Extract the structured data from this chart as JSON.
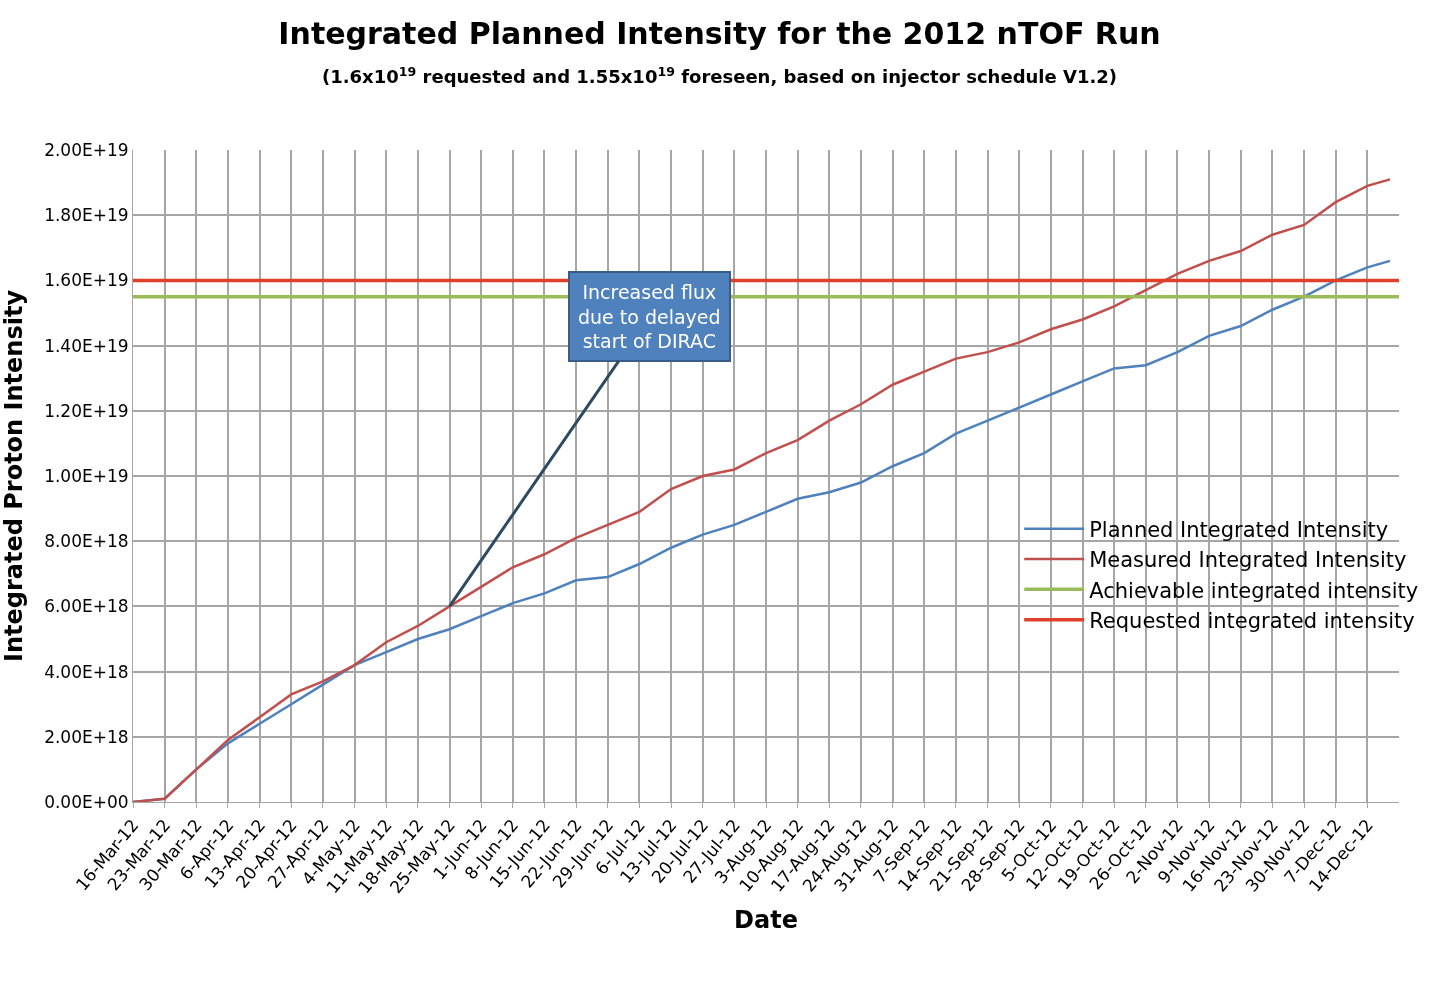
{
  "chart_data": {
    "type": "line",
    "title": "Integrated Planned Intensity for the 2012 nTOF Run",
    "subtitle": "(1.6x10$^{19}$ requested and 1.55x10$^{19}$ foreseen, based on injector schedule V1.2)",
    "xlabel": "Date",
    "ylabel": "Integrated Proton Intensity",
    "x": [
      "2012-03-16",
      "2012-03-23",
      "2012-03-30",
      "2012-04-06",
      "2012-04-13",
      "2012-04-20",
      "2012-04-27",
      "2012-05-04",
      "2012-05-11",
      "2012-05-18",
      "2012-05-25",
      "2012-06-01",
      "2012-06-08",
      "2012-06-15",
      "2012-06-22",
      "2012-06-29",
      "2012-07-06",
      "2012-07-13",
      "2012-07-20",
      "2012-07-27",
      "2012-08-03",
      "2012-08-10",
      "2012-08-17",
      "2012-08-24",
      "2012-08-31",
      "2012-09-07",
      "2012-09-14",
      "2012-09-21",
      "2012-09-28",
      "2012-10-05",
      "2012-10-12",
      "2012-10-19",
      "2012-10-26",
      "2012-11-02",
      "2012-11-09",
      "2012-11-16",
      "2012-11-23",
      "2012-11-30",
      "2012-12-07",
      "2012-12-14",
      "2012-12-19"
    ],
    "series": [
      {
        "name": "Planned Integrated Intensity",
        "color": "#4f81bd",
        "values": [
          0,
          1e+17,
          1e+18,
          1.8e+18,
          2.4e+18,
          3e+18,
          3.6e+18,
          4.2e+18,
          4.6e+18,
          5e+18,
          5.3e+18,
          5.7e+18,
          6.1e+18,
          6.4e+18,
          6.8e+18,
          6.9e+18,
          7.3e+18,
          7.8e+18,
          8.2e+18,
          8.5e+18,
          8.9e+18,
          9.3e+18,
          9.5e+18,
          9.8e+18,
          1.03e+19,
          1.07e+19,
          1.13e+19,
          1.17e+19,
          1.21e+19,
          1.25e+19,
          1.29e+19,
          1.33e+19,
          1.34e+19,
          1.38e+19,
          1.43e+19,
          1.46e+19,
          1.51e+19,
          1.55e+19,
          1.6e+19,
          1.64e+19,
          1.66e+19
        ]
      },
      {
        "name": "Measured Integrated Intensity",
        "color": "#c0504d",
        "values": [
          0,
          1e+17,
          1e+18,
          1.9e+18,
          2.6e+18,
          3.3e+18,
          3.7e+18,
          4.2e+18,
          4.9e+18,
          5.4e+18,
          6e+18,
          6.6e+18,
          7.2e+18,
          7.6e+18,
          8.1e+18,
          8.5e+18,
          8.9e+18,
          9.6e+18,
          1e+19,
          1.02e+19,
          1.07e+19,
          1.11e+19,
          1.17e+19,
          1.22e+19,
          1.28e+19,
          1.32e+19,
          1.36e+19,
          1.38e+19,
          1.41e+19,
          1.45e+19,
          1.48e+19,
          1.52e+19,
          1.57e+19,
          1.62e+19,
          1.66e+19,
          1.69e+19,
          1.74e+19,
          1.77e+19,
          1.84e+19,
          1.89e+19,
          1.91e+19
        ]
      }
    ],
    "ref_lines": [
      {
        "axis": "y",
        "value": 1.55e+19,
        "label": "Achievable integrated intensity",
        "color": "#9bbb59"
      },
      {
        "axis": "y",
        "value": 1.6e+19,
        "label": "Requested integrated intensity",
        "color": "#e0402a"
      }
    ],
    "annotations": [
      {
        "text": "Increased flux due to delayed start of DIRAC",
        "x": "2012-05-25",
        "y": 6e+18
      }
    ],
    "xlim": [
      "2012-03-16",
      "2012-12-21"
    ],
    "xticks": [
      {
        "value": "2012-03-16",
        "label": "16-Mar-12"
      },
      {
        "value": "2012-03-23",
        "label": "23-Mar-12"
      },
      {
        "value": "2012-03-30",
        "label": "30-Mar-12"
      },
      {
        "value": "2012-04-06",
        "label": "6-Apr-12"
      },
      {
        "value": "2012-04-13",
        "label": "13-Apr-12"
      },
      {
        "value": "2012-04-20",
        "label": "20-Apr-12"
      },
      {
        "value": "2012-04-27",
        "label": "27-Apr-12"
      },
      {
        "value": "2012-05-04",
        "label": "4-May-12"
      },
      {
        "value": "2012-05-11",
        "label": "11-May-12"
      },
      {
        "value": "2012-05-18",
        "label": "18-May-12"
      },
      {
        "value": "2012-05-25",
        "label": "25-May-12"
      },
      {
        "value": "2012-06-01",
        "label": "1-Jun-12"
      },
      {
        "value": "2012-06-08",
        "label": "8-Jun-12"
      },
      {
        "value": "2012-06-15",
        "label": "15-Jun-12"
      },
      {
        "value": "2012-06-22",
        "label": "22-Jun-12"
      },
      {
        "value": "2012-06-29",
        "label": "29-Jun-12"
      },
      {
        "value": "2012-07-06",
        "label": "6-Jul-12"
      },
      {
        "value": "2012-07-13",
        "label": "13-Jul-12"
      },
      {
        "value": "2012-07-20",
        "label": "20-Jul-12"
      },
      {
        "value": "2012-07-27",
        "label": "27-Jul-12"
      },
      {
        "value": "2012-08-03",
        "label": "3-Aug-12"
      },
      {
        "value": "2012-08-10",
        "label": "10-Aug-12"
      },
      {
        "value": "2012-08-17",
        "label": "17-Aug-12"
      },
      {
        "value": "2012-08-24",
        "label": "24-Aug-12"
      },
      {
        "value": "2012-08-31",
        "label": "31-Aug-12"
      },
      {
        "value": "2012-09-07",
        "label": "7-Sep-12"
      },
      {
        "value": "2012-09-14",
        "label": "14-Sep-12"
      },
      {
        "value": "2012-09-21",
        "label": "21-Sep-12"
      },
      {
        "value": "2012-09-28",
        "label": "28-Sep-12"
      },
      {
        "value": "2012-10-05",
        "label": "5-Oct-12"
      },
      {
        "value": "2012-10-12",
        "label": "12-Oct-12"
      },
      {
        "value": "2012-10-19",
        "label": "19-Oct-12"
      },
      {
        "value": "2012-10-26",
        "label": "26-Oct-12"
      },
      {
        "value": "2012-11-02",
        "label": "2-Nov-12"
      },
      {
        "value": "2012-11-09",
        "label": "9-Nov-12"
      },
      {
        "value": "2012-11-16",
        "label": "16-Nov-12"
      },
      {
        "value": "2012-11-23",
        "label": "23-Nov-12"
      },
      {
        "value": "2012-11-30",
        "label": "30-Nov-12"
      },
      {
        "value": "2012-12-07",
        "label": "7-Dec-12"
      },
      {
        "value": "2012-12-14",
        "label": "14-Dec-12"
      }
    ],
    "ylim": [
      0,
      2e+19
    ],
    "yticks": [
      {
        "value": 0,
        "label": "0.00E+00"
      },
      {
        "value": 2e+18,
        "label": "2.00E+18"
      },
      {
        "value": 4e+18,
        "label": "4.00E+18"
      },
      {
        "value": 6e+18,
        "label": "6.00E+18"
      },
      {
        "value": 8e+18,
        "label": "8.00E+18"
      },
      {
        "value": 1e+19,
        "label": "1.00E+19"
      },
      {
        "value": 1.2e+19,
        "label": "1.20E+19"
      },
      {
        "value": 1.4e+19,
        "label": "1.40E+19"
      },
      {
        "value": 1.6e+19,
        "label": "1.60E+19"
      },
      {
        "value": 1.8e+19,
        "label": "1.80E+19"
      },
      {
        "value": 2e+19,
        "label": "2.00E+19"
      }
    ],
    "grid": true,
    "legend": "right",
    "marker": "none",
    "line_style": "solid"
  }
}
